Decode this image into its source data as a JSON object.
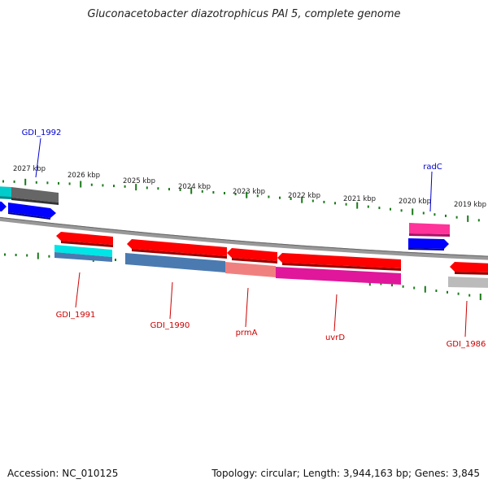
{
  "title": "Gluconacetobacter diazotrophicus PAl 5, complete genome",
  "footer": {
    "accession": "Accession: NC_010125",
    "topology": "Topology: circular; Length: 3,944,163 bp; Genes: 3,845"
  },
  "ticks": [
    {
      "label": "2027 kbp"
    },
    {
      "label": "2026 kbp"
    },
    {
      "label": "2025 kbp"
    },
    {
      "label": "2024 kbp"
    },
    {
      "label": "2023 kbp"
    },
    {
      "label": "2022 kbp"
    },
    {
      "label": "2021 kbp"
    },
    {
      "label": "2020 kbp"
    },
    {
      "label": "2019 kbp"
    }
  ],
  "gene_labels": [
    {
      "name": "GDI_1992",
      "strand": "forward",
      "color": "#0000cc"
    },
    {
      "name": "radC",
      "strand": "forward",
      "color": "#0000cc"
    },
    {
      "name": "GDI_1991",
      "strand": "reverse",
      "color": "#cc0000"
    },
    {
      "name": "GDI_1990",
      "strand": "reverse",
      "color": "#cc0000"
    },
    {
      "name": "prmA",
      "strand": "reverse",
      "color": "#cc0000"
    },
    {
      "name": "uvrD",
      "strand": "reverse",
      "color": "#cc0000"
    },
    {
      "name": "GDI_1986",
      "strand": "reverse",
      "color": "#cc0000"
    }
  ],
  "colors": {
    "backbone": "#888888",
    "ticks": "#1a7a1a",
    "forward_label": "#0000cc",
    "reverse_label": "#cc0000",
    "cds_red": "#ff0000",
    "cds_blue": "#0000ff",
    "cds_pink": "#ff3399",
    "cds_cyan": "#00e5e5",
    "cds_gray": "#666666",
    "cds_steel": "#4a7ab0",
    "cds_salmon": "#f08080",
    "cds_magenta": "#e0179a",
    "cds_lightgray": "#bbbbbb"
  }
}
